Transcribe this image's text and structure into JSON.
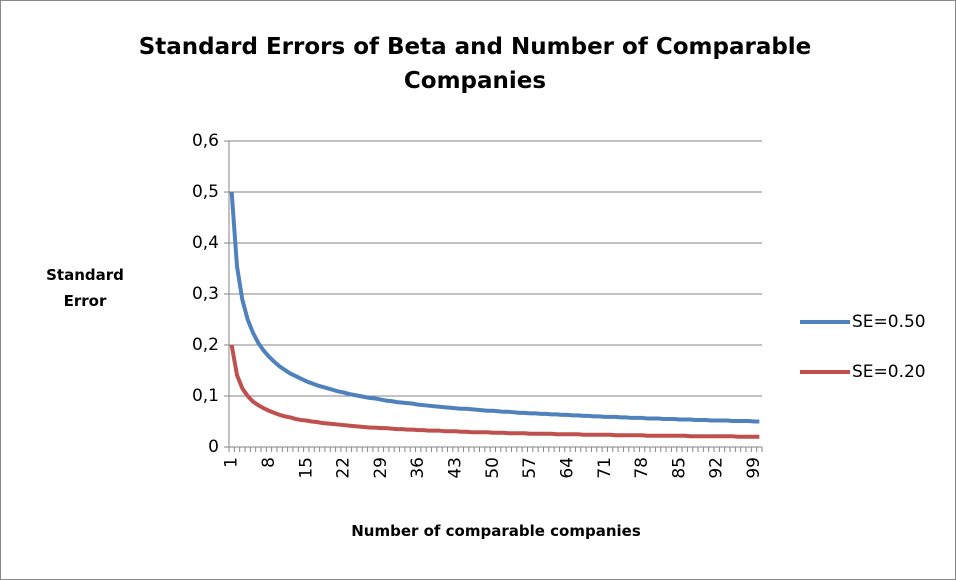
{
  "chart_data": {
    "type": "line",
    "title": "Standard Errors of Beta and Number of Comparable Companies",
    "x_label": "Number of comparable companies",
    "y_label": "Standard Error",
    "categories": [
      "1",
      null,
      null,
      null,
      null,
      null,
      null,
      "8",
      null,
      null,
      null,
      null,
      null,
      null,
      "15",
      null,
      null,
      null,
      null,
      null,
      null,
      "22",
      null,
      null,
      null,
      null,
      null,
      null,
      "29",
      null,
      null,
      null,
      null,
      null,
      null,
      "36",
      null,
      null,
      null,
      null,
      null,
      null,
      "43",
      null,
      null,
      null,
      null,
      null,
      null,
      "50",
      null,
      null,
      null,
      null,
      null,
      null,
      "57",
      null,
      null,
      null,
      null,
      null,
      null,
      "64",
      null,
      null,
      null,
      null,
      null,
      null,
      "71",
      null,
      null,
      null,
      null,
      null,
      null,
      "78",
      null,
      null,
      null,
      null,
      null,
      null,
      "85",
      null,
      null,
      null,
      null,
      null,
      null,
      "92",
      null,
      null,
      null,
      null,
      null,
      null,
      "99",
      null
    ],
    "series": [
      {
        "name": "SE=0.50",
        "color": "#4f81bd",
        "values": [
          0.5,
          0.354,
          0.289,
          0.25,
          0.224,
          0.204,
          0.189,
          0.177,
          0.167,
          0.158,
          0.151,
          0.144,
          0.139,
          0.134,
          0.129,
          0.125,
          0.121,
          0.118,
          0.115,
          0.112,
          0.109,
          0.107,
          0.104,
          0.102,
          0.1,
          0.098,
          0.096,
          0.095,
          0.093,
          0.091,
          0.09,
          0.088,
          0.087,
          0.086,
          0.085,
          0.083,
          0.082,
          0.081,
          0.08,
          0.079,
          0.078,
          0.077,
          0.076,
          0.075,
          0.075,
          0.074,
          0.073,
          0.072,
          0.071,
          0.071,
          0.07,
          0.069,
          0.069,
          0.068,
          0.067,
          0.067,
          0.066,
          0.066,
          0.065,
          0.065,
          0.064,
          0.064,
          0.063,
          0.063,
          0.062,
          0.062,
          0.061,
          0.061,
          0.06,
          0.06,
          0.059,
          0.059,
          0.059,
          0.058,
          0.058,
          0.057,
          0.057,
          0.057,
          0.056,
          0.056,
          0.056,
          0.055,
          0.055,
          0.055,
          0.054,
          0.054,
          0.054,
          0.053,
          0.053,
          0.053,
          0.052,
          0.052,
          0.052,
          0.052,
          0.051,
          0.051,
          0.051,
          0.051,
          0.05,
          0.05
        ]
      },
      {
        "name": "SE=0.20",
        "color": "#c0504d",
        "values": [
          0.2,
          0.141,
          0.115,
          0.1,
          0.089,
          0.082,
          0.076,
          0.071,
          0.067,
          0.063,
          0.06,
          0.058,
          0.055,
          0.053,
          0.052,
          0.05,
          0.049,
          0.047,
          0.046,
          0.045,
          0.044,
          0.043,
          0.042,
          0.041,
          0.04,
          0.039,
          0.038,
          0.038,
          0.037,
          0.037,
          0.036,
          0.035,
          0.035,
          0.034,
          0.034,
          0.033,
          0.033,
          0.032,
          0.032,
          0.032,
          0.031,
          0.031,
          0.031,
          0.03,
          0.03,
          0.029,
          0.029,
          0.029,
          0.029,
          0.028,
          0.028,
          0.028,
          0.027,
          0.027,
          0.027,
          0.027,
          0.026,
          0.026,
          0.026,
          0.026,
          0.026,
          0.025,
          0.025,
          0.025,
          0.025,
          0.025,
          0.024,
          0.024,
          0.024,
          0.024,
          0.024,
          0.024,
          0.023,
          0.023,
          0.023,
          0.023,
          0.023,
          0.023,
          0.022,
          0.022,
          0.022,
          0.022,
          0.022,
          0.022,
          0.022,
          0.022,
          0.021,
          0.021,
          0.021,
          0.021,
          0.021,
          0.021,
          0.021,
          0.021,
          0.021,
          0.02,
          0.02,
          0.02,
          0.02,
          0.02
        ]
      }
    ],
    "ylim": [
      0,
      0.6
    ],
    "yticks": [
      0,
      {
        "value": 0.1,
        "label": "0,1"
      },
      {
        "value": 0.2,
        "label": "0,2"
      },
      {
        "value": 0.3,
        "label": "0,3"
      },
      {
        "value": 0.4,
        "label": "0,4"
      },
      {
        "value": 0.5,
        "label": "0,5"
      },
      {
        "value": 0.6,
        "label": "0,6"
      }
    ],
    "grid": true,
    "legend": "right"
  }
}
